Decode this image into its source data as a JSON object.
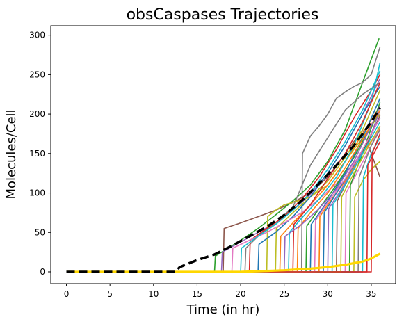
{
  "chart_data": {
    "type": "line",
    "title": "obsCaspases Trajectories",
    "xlabel": "Time (in hr)",
    "ylabel": "Molecules/Cell",
    "xlim": [
      -1.8,
      37.8
    ],
    "ylim": [
      -15,
      312
    ],
    "xticks": [
      0,
      5,
      10,
      15,
      20,
      25,
      30,
      35
    ],
    "yticks": [
      0,
      50,
      100,
      150,
      200,
      250,
      300
    ],
    "grid": false,
    "legend": "none",
    "trajectory_colors": [
      "#1f77b4",
      "#ff7f0e",
      "#2ca02c",
      "#d62728",
      "#9467bd",
      "#8c564b",
      "#e377c2",
      "#7f7f7f",
      "#bcbd22",
      "#17becf"
    ],
    "trajectories": [
      {
        "color": "#8c564b",
        "x": [
          0,
          18.0,
          18.1,
          20,
          22,
          24,
          26,
          28,
          30,
          32,
          34,
          36
        ],
        "y": [
          0,
          0,
          55,
          62,
          70,
          78,
          88,
          100,
          120,
          150,
          180,
          120
        ]
      },
      {
        "color": "#2ca02c",
        "x": [
          0,
          17.0,
          17.1,
          20,
          22,
          24,
          26,
          28,
          30,
          32,
          34,
          35.9
        ],
        "y": [
          0,
          0,
          20,
          40,
          55,
          72,
          90,
          110,
          140,
          180,
          240,
          296
        ]
      },
      {
        "color": "#9467bd",
        "x": [
          0,
          17.8,
          17.9,
          20,
          22,
          24,
          26,
          28,
          30,
          32,
          34,
          36
        ],
        "y": [
          0,
          0,
          25,
          38,
          50,
          62,
          78,
          98,
          125,
          160,
          200,
          245
        ]
      },
      {
        "color": "#7f7f7f",
        "x": [
          0,
          20.5,
          20.6,
          22,
          24,
          26,
          28,
          30,
          32,
          34,
          36
        ],
        "y": [
          0,
          0,
          30,
          45,
          62,
          82,
          135,
          170,
          205,
          225,
          240
        ]
      },
      {
        "color": "#7f7f7f",
        "x": [
          0,
          27.0,
          27.1,
          28,
          29,
          30,
          31,
          32,
          33,
          34,
          35,
          36
        ],
        "y": [
          0,
          0,
          150,
          172,
          185,
          200,
          220,
          228,
          235,
          240,
          250,
          285
        ]
      },
      {
        "color": "#bcbd22",
        "x": [
          0,
          23.0,
          23.1,
          24,
          25,
          26,
          28,
          30,
          32,
          34,
          36
        ],
        "y": [
          0,
          0,
          70,
          78,
          85,
          88,
          95,
          110,
          140,
          170,
          200
        ]
      },
      {
        "color": "#bcbd22",
        "x": [
          0,
          24.0,
          24.1,
          26,
          28,
          30,
          32,
          34,
          36
        ],
        "y": [
          0,
          0,
          55,
          75,
          95,
          115,
          145,
          180,
          230
        ]
      },
      {
        "color": "#d62728",
        "x": [
          0,
          21.0,
          21.1,
          23,
          25,
          27,
          29,
          31,
          33,
          35,
          36
        ],
        "y": [
          0,
          0,
          40,
          55,
          70,
          92,
          120,
          155,
          195,
          230,
          250
        ]
      },
      {
        "color": "#1f77b4",
        "x": [
          0,
          22.0,
          22.1,
          24,
          26,
          28,
          30,
          32,
          34,
          36
        ],
        "y": [
          0,
          0,
          35,
          50,
          70,
          95,
          125,
          160,
          200,
          235
        ]
      },
      {
        "color": "#ff7f0e",
        "x": [
          0,
          24.5,
          24.6,
          26,
          28,
          30,
          32,
          34,
          36
        ],
        "y": [
          0,
          0,
          45,
          62,
          85,
          110,
          140,
          175,
          210
        ]
      },
      {
        "color": "#e377c2",
        "x": [
          0,
          19.0,
          19.1,
          21,
          23,
          25,
          27,
          29,
          31,
          33,
          35,
          36
        ],
        "y": [
          0,
          0,
          30,
          40,
          50,
          62,
          75,
          92,
          112,
          138,
          165,
          180
        ]
      },
      {
        "color": "#17becf",
        "x": [
          0,
          25.5,
          25.6,
          27,
          29,
          31,
          33,
          35,
          36
        ],
        "y": [
          0,
          0,
          50,
          68,
          92,
          120,
          160,
          215,
          265
        ]
      },
      {
        "color": "#17becf",
        "x": [
          0,
          20.0,
          20.1,
          22,
          24,
          26,
          28,
          30,
          32,
          34,
          36
        ],
        "y": [
          0,
          0,
          30,
          45,
          60,
          78,
          100,
          130,
          165,
          205,
          255
        ]
      },
      {
        "color": "#d62728",
        "x": [
          0,
          26.0,
          26.1,
          28,
          30,
          32,
          34,
          36
        ],
        "y": [
          0,
          0,
          60,
          85,
          118,
          150,
          190,
          240
        ]
      },
      {
        "color": "#2ca02c",
        "x": [
          0,
          27.5,
          27.6,
          29,
          31,
          33,
          35,
          36
        ],
        "y": [
          0,
          0,
          58,
          80,
          110,
          145,
          185,
          205
        ]
      },
      {
        "color": "#1f77b4",
        "x": [
          0,
          28.0,
          28.1,
          30,
          32,
          34,
          36
        ],
        "y": [
          0,
          0,
          60,
          90,
          125,
          170,
          220
        ]
      },
      {
        "color": "#ff7f0e",
        "x": [
          0,
          29.0,
          29.1,
          30,
          32,
          34,
          36
        ],
        "y": [
          0,
          0,
          70,
          85,
          115,
          150,
          182
        ]
      },
      {
        "color": "#9467bd",
        "x": [
          0,
          30.0,
          30.1,
          31,
          33,
          35,
          36
        ],
        "y": [
          0,
          0,
          80,
          95,
          130,
          175,
          205
        ]
      },
      {
        "color": "#8c564b",
        "x": [
          0,
          31.0,
          31.1,
          32,
          34,
          36
        ],
        "y": [
          0,
          0,
          90,
          110,
          150,
          198
        ]
      },
      {
        "color": "#e377c2",
        "x": [
          0,
          32.0,
          32.1,
          33,
          35,
          36
        ],
        "y": [
          0,
          0,
          100,
          118,
          160,
          185
        ]
      },
      {
        "color": "#bcbd22",
        "x": [
          0,
          33.0,
          33.1,
          34,
          35,
          36
        ],
        "y": [
          0,
          0,
          95,
          115,
          130,
          140
        ]
      },
      {
        "color": "#17becf",
        "x": [
          0,
          34.0,
          34.1,
          35,
          36
        ],
        "y": [
          0,
          0,
          120,
          150,
          170
        ]
      },
      {
        "color": "#d62728",
        "x": [
          0,
          35.0,
          35.1,
          36
        ],
        "y": [
          0,
          0,
          150,
          175
        ]
      },
      {
        "color": "#1f77b4",
        "x": [
          0,
          29.5,
          29.6,
          31,
          33,
          35,
          36
        ],
        "y": [
          0,
          0,
          75,
          100,
          135,
          175,
          195
        ]
      },
      {
        "color": "#2ca02c",
        "x": [
          0,
          32.5,
          32.6,
          34,
          36
        ],
        "y": [
          0,
          0,
          110,
          150,
          215
        ]
      },
      {
        "color": "#ff7f0e",
        "x": [
          0,
          26.5,
          26.6,
          28,
          30,
          32,
          34,
          36
        ],
        "y": [
          0,
          0,
          55,
          75,
          100,
          132,
          168,
          205
        ]
      },
      {
        "color": "#9467bd",
        "x": [
          0,
          25.0,
          25.1,
          27,
          29,
          31,
          33,
          35,
          36
        ],
        "y": [
          0,
          0,
          45,
          60,
          80,
          105,
          140,
          185,
          210
        ]
      },
      {
        "color": "#7f7f7f",
        "x": [
          0,
          33.5,
          33.6,
          35,
          36
        ],
        "y": [
          0,
          0,
          120,
          160,
          180
        ]
      },
      {
        "color": "#17becf",
        "x": [
          0,
          30.5,
          30.6,
          32,
          34,
          36
        ],
        "y": [
          0,
          0,
          85,
          110,
          150,
          190
        ]
      },
      {
        "color": "#e377c2",
        "x": [
          0,
          28.5,
          28.6,
          30,
          32,
          34,
          36
        ],
        "y": [
          0,
          0,
          65,
          88,
          118,
          155,
          195
        ]
      },
      {
        "color": "#bcbd22",
        "x": [
          0,
          31.5,
          31.6,
          33,
          35,
          36
        ],
        "y": [
          0,
          0,
          95,
          125,
          165,
          185
        ]
      },
      {
        "color": "#d62728",
        "x": [
          0,
          34.5,
          34.6,
          36
        ],
        "y": [
          0,
          0,
          135,
          165
        ]
      }
    ],
    "mean_line": {
      "color": "#000000",
      "style": "dashed",
      "x": [
        0,
        5,
        10,
        12.5,
        13,
        15,
        17,
        19,
        21,
        23,
        25,
        27,
        29,
        31,
        33,
        35,
        36
      ],
      "y": [
        0,
        0,
        0,
        0,
        6,
        15,
        22,
        33,
        45,
        57,
        72,
        90,
        112,
        135,
        160,
        190,
        208
      ]
    },
    "lower_line": {
      "color": "#ffd700",
      "style": "solid",
      "x": [
        0,
        10,
        20,
        25,
        28,
        30,
        32,
        34,
        35,
        36
      ],
      "y": [
        0,
        0,
        0,
        2,
        4,
        6,
        9,
        13,
        17,
        23
      ]
    }
  }
}
